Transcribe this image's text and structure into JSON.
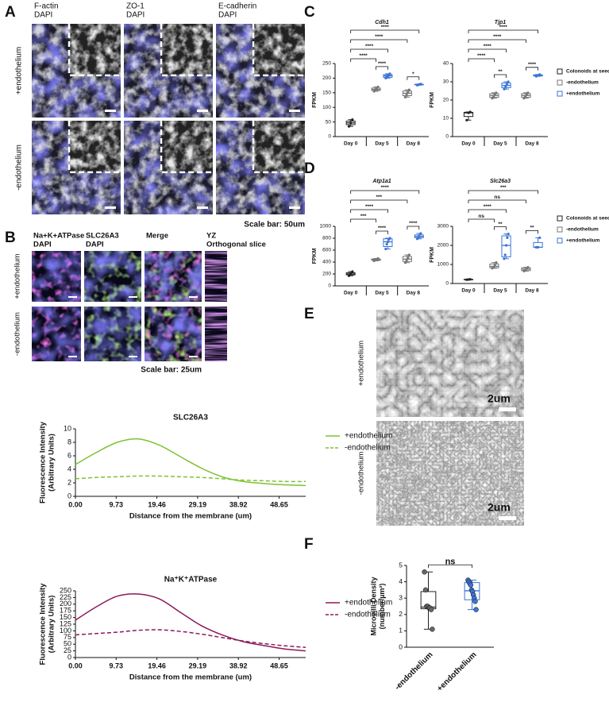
{
  "figure": {
    "panel_letters": [
      "A",
      "B",
      "C",
      "D",
      "E",
      "F"
    ],
    "panel_a": {
      "column_labels": [
        [
          "F-actin",
          "DAPI"
        ],
        [
          "ZO-1",
          "DAPI"
        ],
        [
          "E-cadherin",
          "DAPI"
        ]
      ],
      "row_labels": [
        "+endothelium",
        "-endothelium"
      ],
      "scale_bar": "Scale bar: 50um"
    },
    "panel_b": {
      "column_labels": [
        [
          "Na+K+ATPase",
          "DAPI"
        ],
        [
          "SLC26A3",
          "DAPI"
        ],
        [
          "Merge"
        ],
        [
          "YZ",
          "Orthogonal slice"
        ]
      ],
      "row_labels": [
        "+endothelium",
        "-endothelium"
      ],
      "scale_bar": "Scale bar: 25um"
    },
    "panel_e": {
      "row_labels": [
        "+endothelium",
        "-endothelium"
      ],
      "scale_bars": [
        "2um",
        "2um"
      ]
    }
  },
  "chart_data": [
    {
      "type": "line",
      "title": "SLC26A3",
      "ylabel": [
        "Fluorescence Intensity",
        "(Arbitrary Units)"
      ],
      "xlabel": "Distance from the membrane (um)",
      "x": [
        0,
        5,
        10,
        15,
        20,
        25,
        30,
        35,
        40,
        45,
        50,
        55
      ],
      "xlim": [
        0,
        55
      ],
      "xticks": [
        {
          "value": 0,
          "label": "0.00"
        },
        9.73,
        19.46,
        29.19,
        38.92,
        48.65
      ],
      "ylim": [
        0,
        10
      ],
      "yticks": [
        0,
        2,
        4,
        6,
        8,
        10
      ],
      "legend": "right",
      "series": [
        {
          "name": "+endothelium",
          "color": "#7dc232",
          "style": "solid",
          "values": [
            4.7,
            6.5,
            8.0,
            8.5,
            7.6,
            5.9,
            4.2,
            2.9,
            2.2,
            1.9,
            1.7,
            1.6
          ]
        },
        {
          "name": "-endothelium",
          "color": "#7dc232",
          "style": "dashed",
          "values": [
            2.6,
            2.8,
            2.9,
            3.0,
            3.0,
            2.9,
            2.8,
            2.6,
            2.4,
            2.3,
            2.2,
            2.2
          ]
        }
      ]
    },
    {
      "type": "line",
      "title": "Na⁺K⁺ATPase",
      "ylabel": [
        "Fluorescence Intensity",
        "(Arbitrary Units)"
      ],
      "xlabel": "Distance from the membrane (um)",
      "x": [
        0,
        5,
        10,
        15,
        20,
        25,
        30,
        35,
        40,
        45,
        50,
        55
      ],
      "xlim": [
        0,
        55
      ],
      "xticks": [
        {
          "value": 0,
          "label": "0.00"
        },
        9.73,
        19.46,
        29.19,
        38.92,
        48.65
      ],
      "ylim": [
        0,
        250
      ],
      "yticks": [
        0,
        25,
        50,
        75,
        100,
        125,
        150,
        175,
        200,
        225,
        250
      ],
      "legend": "right",
      "series": [
        {
          "name": "+endothelium",
          "color": "#8b1a5a",
          "style": "solid",
          "values": [
            140,
            190,
            230,
            238,
            220,
            170,
            120,
            85,
            60,
            45,
            32,
            25
          ]
        },
        {
          "name": "-endothelium",
          "color": "#8b1a5a",
          "style": "dashed",
          "values": [
            85,
            90,
            95,
            102,
            104,
            98,
            88,
            75,
            62,
            52,
            44,
            38
          ]
        }
      ]
    },
    {
      "type": "box",
      "title": "Cdh1",
      "ylabel": [
        "FPKM"
      ],
      "categories": [
        "Day 0",
        "Day 5",
        "Day 8"
      ],
      "ylim": [
        0,
        250
      ],
      "yticks": [
        0,
        50,
        100,
        150,
        200,
        250
      ],
      "series": [
        {
          "color": "#222222",
          "values": [
            {
              "min": 35,
              "q1": 41,
              "median": 47,
              "q3": 53,
              "max": 58,
              "points": [
                35,
                47,
                58
              ]
            },
            null,
            null
          ]
        },
        {
          "color": "#777777",
          "values": [
            null,
            {
              "min": 155,
              "q1": 158,
              "median": 161.5,
              "q3": 166,
              "max": 170,
              "points": [
                155,
                160,
                163,
                170
              ]
            },
            {
              "min": 135,
              "q1": 140,
              "median": 148.5,
              "q3": 156,
              "max": 160,
              "points": [
                135,
                145,
                152,
                160
              ]
            }
          ]
        },
        {
          "color": "#3b74d6",
          "values": [
            null,
            {
              "min": 200,
              "q1": 203,
              "median": 208,
              "q3": 212,
              "max": 215,
              "points": [
                200,
                205,
                208,
                210,
                215
              ]
            },
            {
              "min": 176,
              "q1": 177,
              "median": 178,
              "q3": 179,
              "max": 180,
              "points": [
                176,
                178,
                180
              ]
            }
          ]
        }
      ],
      "comparisons": [
        {
          "label": "****"
        },
        {
          "label": "****"
        },
        {
          "label": "****"
        },
        {
          "label": "****"
        },
        {
          "label": "****"
        },
        {
          "label": "*"
        }
      ]
    },
    {
      "type": "box",
      "title": "Tjp1",
      "ylabel": [
        "FPKM"
      ],
      "categories": [
        "Day 0",
        "Day 5",
        "Day 8"
      ],
      "ylim": [
        0,
        40
      ],
      "yticks": [
        0,
        10,
        20,
        30,
        40
      ],
      "legend": "right",
      "series": [
        {
          "name": "Colonoids at seeding",
          "color": "#222222",
          "values": [
            {
              "min": 9,
              "q1": 11,
              "median": 13,
              "q3": 13.3,
              "max": 13.5,
              "points": [
                9,
                13,
                13.5
              ]
            },
            null,
            null
          ]
        },
        {
          "name": "-endothelium",
          "color": "#777777",
          "values": [
            null,
            {
              "min": 21,
              "q1": 21.5,
              "median": 22.5,
              "q3": 23.5,
              "max": 24,
              "points": [
                21,
                22,
                23,
                24
              ]
            },
            {
              "min": 21,
              "q1": 21.5,
              "median": 22.5,
              "q3": 23.5,
              "max": 24,
              "points": [
                21,
                22,
                23,
                24
              ]
            }
          ]
        },
        {
          "name": "+endothelium",
          "color": "#3b74d6",
          "values": [
            null,
            {
              "min": 26,
              "q1": 26.8,
              "median": 28,
              "q3": 29.3,
              "max": 30,
              "points": [
                26,
                27.5,
                28.5,
                30
              ]
            },
            {
              "min": 33,
              "q1": 33.2,
              "median": 33.5,
              "q3": 33.8,
              "max": 34,
              "points": [
                33,
                33.5,
                34
              ]
            }
          ]
        }
      ],
      "comparisons": [
        {
          "label": "****"
        },
        {
          "label": "****"
        },
        {
          "label": "****"
        },
        {
          "label": "****"
        },
        {
          "label": "**"
        },
        {
          "label": "****"
        }
      ]
    },
    {
      "type": "box",
      "title": "Atp1a1",
      "ylabel": [
        "FPKM"
      ],
      "categories": [
        "Day 0",
        "Day 5",
        "Day 8"
      ],
      "ylim": [
        0,
        1000
      ],
      "yticks": [
        0,
        200,
        400,
        600,
        800,
        1000
      ],
      "series": [
        {
          "color": "#222222",
          "values": [
            {
              "min": 170,
              "q1": 185,
              "median": 200,
              "q3": 220,
              "max": 240,
              "points": [
                170,
                200,
                240
              ]
            },
            null,
            null
          ]
        },
        {
          "color": "#777777",
          "values": [
            null,
            {
              "min": 420,
              "q1": 428,
              "median": 440,
              "q3": 452,
              "max": 460,
              "points": [
                420,
                435,
                445,
                460
              ]
            },
            {
              "min": 390,
              "q1": 410,
              "median": 450,
              "q3": 495,
              "max": 520,
              "points": [
                390,
                430,
                470,
                520
              ]
            }
          ]
        },
        {
          "color": "#3b74d6",
          "values": [
            null,
            {
              "min": 620,
              "q1": 660,
              "median": 740,
              "q3": 790,
              "max": 800,
              "points": [
                620,
                700,
                740,
                780,
                800
              ]
            },
            {
              "min": 790,
              "q1": 810,
              "median": 830,
              "q3": 855,
              "max": 880,
              "points": [
                790,
                830,
                880
              ]
            }
          ]
        }
      ],
      "comparisons": [
        {
          "label": "****"
        },
        {
          "label": "***"
        },
        {
          "label": "****"
        },
        {
          "label": "***"
        },
        {
          "label": "****"
        },
        {
          "label": "****"
        }
      ]
    },
    {
      "type": "box",
      "title": "Slc26a3",
      "ylabel": [
        "FPKM"
      ],
      "categories": [
        "Day 0",
        "Day 5",
        "Day 8"
      ],
      "ylim": [
        0,
        3000
      ],
      "yticks": [
        0,
        1000,
        2000,
        3000
      ],
      "legend": "right",
      "series": [
        {
          "name": "Colonoids at seeding",
          "color": "#222222",
          "values": [
            {
              "min": 200,
              "q1": 205,
              "median": 210,
              "q3": 215,
              "max": 220,
              "points": [
                200,
                210,
                220
              ]
            },
            null,
            null
          ]
        },
        {
          "name": "-endothelium",
          "color": "#777777",
          "values": [
            null,
            {
              "min": 800,
              "q1": 825,
              "median": 900,
              "q3": 1025,
              "max": 1100,
              "points": [
                800,
                850,
                950,
                1100
              ]
            },
            {
              "min": 650,
              "q1": 675,
              "median": 750,
              "q3": 825,
              "max": 850,
              "points": [
                650,
                700,
                800,
                850
              ]
            }
          ]
        },
        {
          "name": "+endothelium",
          "color": "#3b74d6",
          "values": [
            null,
            {
              "min": 1300,
              "q1": 1400,
              "median": 2000,
              "q3": 2500,
              "max": 2600,
              "points": [
                1300,
                1500,
                2000,
                2400,
                2600
              ]
            },
            {
              "min": 1900,
              "q1": 1900,
              "median": 1900,
              "q3": 2150,
              "max": 2400,
              "points": [
                1900,
                1900,
                2400
              ]
            }
          ]
        }
      ],
      "comparisons": [
        {
          "label": "***"
        },
        {
          "label": "ns"
        },
        {
          "label": "****"
        },
        {
          "label": "ns"
        },
        {
          "label": "**"
        },
        {
          "label": "**"
        }
      ]
    },
    {
      "type": "box",
      "ylabel": [
        "Microvilli Density",
        "(number/µm²)"
      ],
      "categories": [
        "-endothelium",
        "+endothelium"
      ],
      "ylim": [
        0,
        5
      ],
      "yticks": [
        0,
        1,
        2,
        3,
        4,
        5
      ],
      "series": [
        {
          "color": "#222222",
          "values": [
            {
              "min": 1.1,
              "q1": 2.35,
              "median": 2.45,
              "q3": 3.4,
              "max": 4.6,
              "points": [
                4.6,
                3.5,
                2.5,
                2.5,
                2.4,
                2.4,
                2.3,
                1.1
              ]
            },
            null
          ]
        },
        {
          "color": "#3b74d6",
          "values": [
            null,
            {
              "min": 2.3,
              "q1": 2.9,
              "median": 3.45,
              "q3": 3.95,
              "max": 4.1,
              "points": [
                4.1,
                4.0,
                3.9,
                3.8,
                3.5,
                3.4,
                3.2,
                3.0,
                2.8,
                2.3
              ]
            }
          ]
        }
      ],
      "comparisons": [
        {
          "label": "ns"
        }
      ]
    }
  ]
}
